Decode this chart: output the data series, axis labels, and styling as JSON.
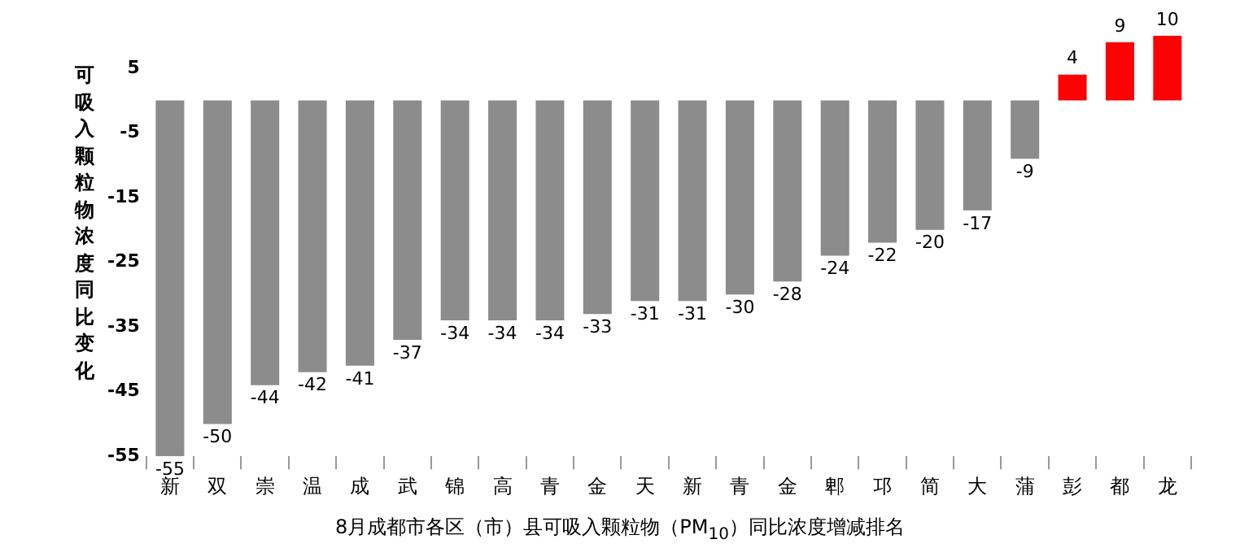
{
  "chart_data": {
    "type": "bar",
    "title": "8月成都市各区（市）县可吸入颗粒物（PM$_{10}$）同比浓度增减排名",
    "ylabel": "可吸入颗粒物浓度同比变化",
    "categories": [
      "新",
      "双",
      "崇",
      "温",
      "成",
      "武",
      "锦",
      "高",
      "青",
      "金",
      "天",
      "新",
      "青",
      "金",
      "郫",
      "邛",
      "简",
      "大",
      "蒲",
      "彭",
      "都",
      "龙"
    ],
    "values": [
      -55,
      -50,
      -44,
      -42,
      -41,
      -37,
      -34,
      -34,
      -34,
      -33,
      -31,
      -31,
      -30,
      -28,
      -24,
      -22,
      -20,
      -17,
      -9,
      4,
      9,
      10
    ],
    "colors": [
      "#8c8c8c",
      "#8c8c8c",
      "#8c8c8c",
      "#8c8c8c",
      "#8c8c8c",
      "#8c8c8c",
      "#8c8c8c",
      "#8c8c8c",
      "#8c8c8c",
      "#8c8c8c",
      "#8c8c8c",
      "#8c8c8c",
      "#8c8c8c",
      "#8c8c8c",
      "#8c8c8c",
      "#8c8c8c",
      "#8c8c8c",
      "#8c8c8c",
      "#8c8c8c",
      "#ff0000",
      "#ff0000",
      "#ff0000"
    ],
    "ylim": [
      -55,
      10
    ],
    "yticks": [
      5,
      -5,
      -15,
      -25,
      -35,
      -45,
      -55
    ],
    "data_labels": true,
    "grid": false,
    "legend": false
  }
}
